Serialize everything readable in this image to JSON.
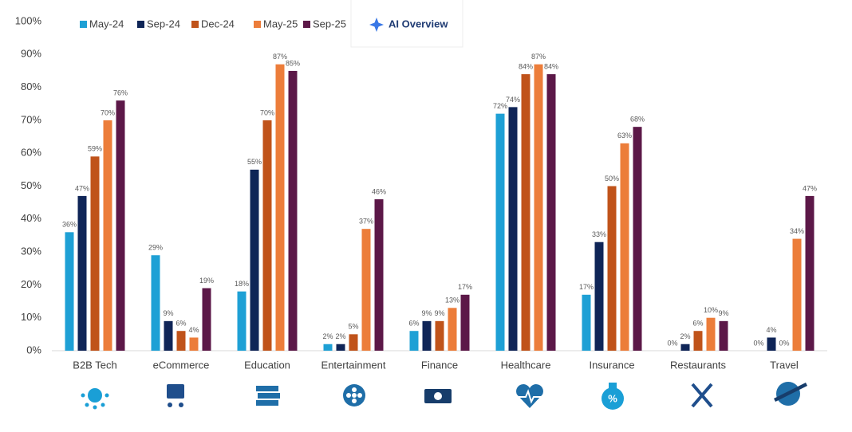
{
  "chart_data": {
    "type": "bar",
    "badge": "AI Overview",
    "categories": [
      "B2B Tech",
      "eCommerce",
      "Education",
      "Entertainment",
      "Finance",
      "Healthcare",
      "Insurance",
      "Restaurants",
      "Travel"
    ],
    "series": [
      {
        "name": "May-24",
        "color": "#1ea0d5",
        "values": [
          36,
          29,
          18,
          2,
          6,
          72,
          17,
          0,
          0
        ],
        "value_labels": [
          "36%",
          "29%",
          "18%",
          "2%",
          "6%",
          "72%",
          "17%",
          "0%",
          "0%"
        ]
      },
      {
        "name": "Sep-24",
        "color": "#0f2557",
        "values": [
          47,
          9,
          55,
          2,
          9,
          74,
          33,
          2,
          4
        ],
        "value_labels": [
          "47%",
          "9%",
          "55%",
          "2%",
          "9%",
          "74%",
          "33%",
          "2%",
          "4%"
        ]
      },
      {
        "name": "Dec-24",
        "color": "#c0531a",
        "values": [
          59,
          6,
          70,
          5,
          9,
          84,
          50,
          6,
          0
        ],
        "value_labels": [
          "59%",
          "6%",
          "70%",
          "5%",
          "9%",
          "84%",
          "50%",
          "6%",
          "0%"
        ]
      },
      {
        "name": "May-25",
        "color": "#ec7d3a",
        "values": [
          70,
          4,
          87,
          37,
          13,
          87,
          63,
          10,
          34
        ],
        "value_labels": [
          "70%",
          "4%",
          "87%",
          "37%",
          "13%",
          "87%",
          "63%",
          "10%",
          "34%"
        ]
      },
      {
        "name": "Sep-25",
        "color": "#5c1848",
        "values": [
          76,
          19,
          85,
          46,
          17,
          84,
          68,
          9,
          47
        ],
        "value_labels": [
          "76%",
          "19%",
          "85%",
          "46%",
          "17%",
          "84%",
          "68%",
          "9%",
          "47%"
        ]
      }
    ],
    "ylim": [
      0,
      100
    ],
    "yticks": [
      {
        "value": 0,
        "label": "0%"
      },
      {
        "value": 10,
        "label": "10%"
      },
      {
        "value": 20,
        "label": "20%"
      },
      {
        "value": 30,
        "label": "30%"
      },
      {
        "value": 40,
        "label": "40%"
      },
      {
        "value": 50,
        "label": "50%"
      },
      {
        "value": 60,
        "label": "60%"
      },
      {
        "value": 70,
        "label": "70%"
      },
      {
        "value": 80,
        "label": "80%"
      },
      {
        "value": 90,
        "label": "90%"
      },
      {
        "value": 100,
        "label": "100%"
      }
    ],
    "grid": false
  }
}
